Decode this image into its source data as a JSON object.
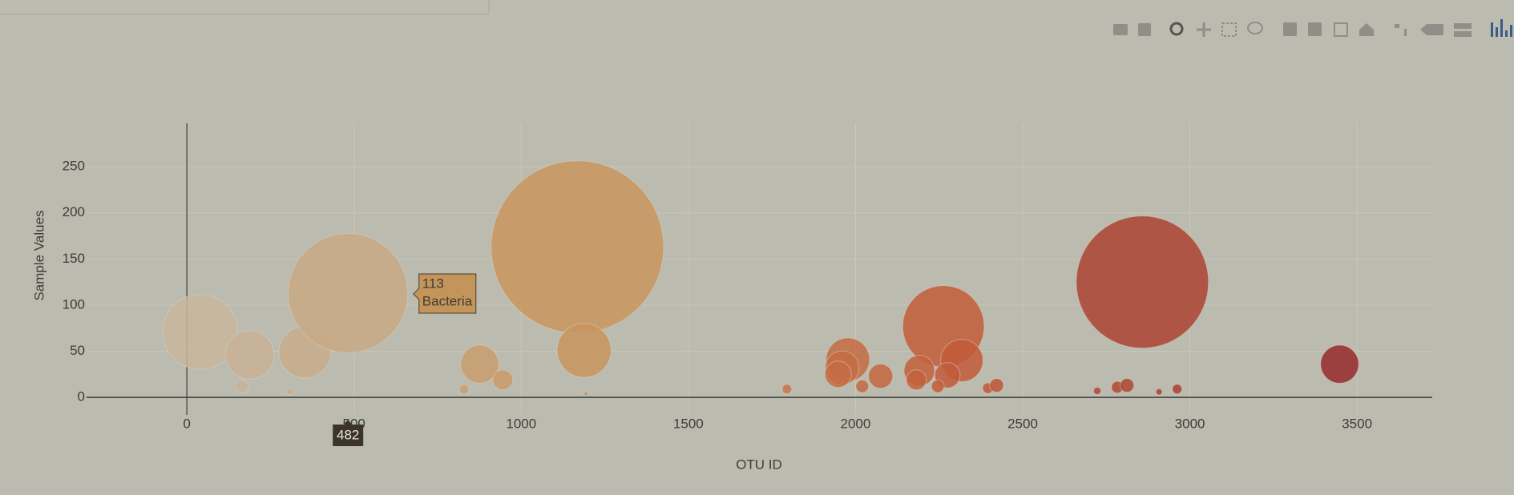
{
  "chart_data": {
    "type": "bubble",
    "x_label": "OTU ID",
    "y_label": "Sample Values",
    "xlim": [
      -300,
      3725
    ],
    "ylim": [
      -19,
      297
    ],
    "xticks": [
      0,
      500,
      1000,
      1500,
      2000,
      2500,
      3000,
      3500
    ],
    "yticks": [
      0,
      50,
      100,
      150,
      200,
      250
    ],
    "grid": true,
    "colorscale": [
      "#c8b69e",
      "#c9955e",
      "#c25a38",
      "#962a2b"
    ],
    "series": [
      {
        "x": [
          40,
          188,
          353,
          482,
          165,
          309,
          876,
          945,
          829,
          1168,
          1188,
          1194,
          1795,
          1977,
          1960,
          1948,
          2075,
          2020,
          2263,
          2318,
          2191,
          2182,
          2275,
          2246,
          2396,
          2422,
          2858,
          3448,
          2723,
          2783,
          2812,
          2908,
          2962
        ],
        "y": [
          71,
          46,
          49,
          113,
          12,
          6,
          36,
          19,
          9,
          163,
          51,
          4,
          9,
          41,
          32,
          25,
          23,
          12,
          77,
          40,
          29,
          19,
          24,
          12,
          10,
          13,
          125,
          36,
          7,
          11,
          13,
          6,
          9
        ]
      }
    ],
    "hover": {
      "x": 482,
      "y": 113,
      "text": "Bacteria"
    }
  }
}
